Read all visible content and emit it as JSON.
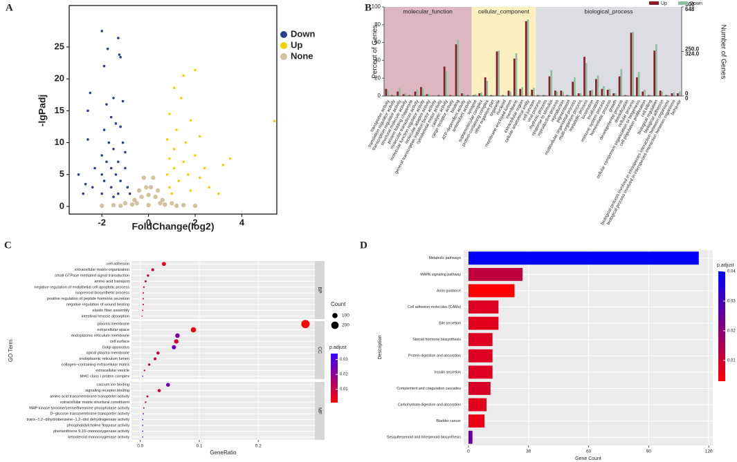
{
  "chart_data": [
    {
      "type": "scatter",
      "panel_label": "A",
      "x_label": "FoldChange(log2)",
      "y_label": "-lgPadj",
      "xlim": [
        -3.4,
        5.5
      ],
      "ylim": [
        -1.2,
        31.5
      ],
      "xticks": [
        -2,
        0,
        2,
        4
      ],
      "yticks": [
        0,
        5,
        10,
        15,
        20,
        25
      ],
      "series": [
        {
          "name": "Down",
          "color": "#2b3f8f",
          "x": [
            -2,
            -1.3,
            -1.75,
            -1.25,
            -1.2,
            -1.9,
            -2.5,
            -1.5,
            -1.8,
            -1.1,
            -2.6,
            -1.6,
            -1.4,
            -1.9,
            -1.2,
            -2.6,
            -1.7,
            -1.1,
            -1.5,
            -2.0,
            -1.0,
            -1.8,
            -1.3,
            -2.3,
            -1.6,
            -1.0,
            -2.0,
            -1.4,
            -3.0,
            -2.7,
            -1.9,
            -1.2,
            -2.4,
            -1.6,
            -0.9,
            -2.0,
            -1.3,
            -0.8,
            -2.8,
            -1.5
          ],
          "y": [
            27.5,
            26.4,
            24.7,
            23.8,
            23.4,
            22,
            17.8,
            17,
            16,
            16.5,
            15,
            14,
            13,
            12,
            12.5,
            10.5,
            10,
            10,
            9,
            8,
            8.5,
            7,
            7,
            6,
            6,
            6,
            5,
            5,
            5,
            3.5,
            4,
            4,
            3,
            3,
            3,
            2,
            2,
            2,
            2,
            1.5
          ]
        },
        {
          "name": "Up",
          "color": "#f5d000",
          "x": [
            2,
            1.5,
            1.1,
            1.4,
            0.9,
            1.8,
            1.2,
            2.2,
            0.8,
            1.6,
            3.5,
            1.1,
            2,
            0.9,
            1.5,
            2.4,
            1.1,
            0.8,
            1.7,
            3.2,
            2.2,
            1.3,
            0.9,
            2.6,
            1.8,
            1.0,
            5.4,
            3.0
          ],
          "y": [
            21.4,
            20.5,
            18.6,
            17,
            14.5,
            13.5,
            12,
            11,
            10.5,
            10,
            7.5,
            9,
            8,
            7.5,
            7,
            6,
            6,
            5,
            5,
            6.5,
            4.5,
            4,
            3,
            3,
            2.5,
            2,
            13.4,
            2
          ]
        },
        {
          "name": "None",
          "color": "#d2c2a0",
          "x": [
            -0.5,
            0.5,
            -0.3,
            0.3,
            -0.1,
            0.1,
            0,
            -0.7,
            0.7,
            -0.2,
            0.2,
            -0.4,
            0.4,
            -1,
            1,
            -1.5,
            1.5,
            -0.6,
            0.6,
            0,
            -2,
            2,
            -1.2,
            1.2
          ],
          "y": [
            0.5,
            0.5,
            1.5,
            1.5,
            3,
            3,
            0.2,
            0.3,
            0.3,
            4.5,
            4.5,
            2.5,
            2.5,
            0.5,
            0.5,
            0.2,
            0.2,
            1,
            1,
            1.8,
            0.1,
            0.1,
            0.1,
            0.1
          ]
        }
      ]
    },
    {
      "type": "grouped_bar",
      "panel_label": "B",
      "y_label": "Percent of Genes",
      "y2_label": "Number of Genes",
      "ylim": [
        0,
        100
      ],
      "yticks": [
        0,
        20,
        40,
        60,
        80,
        100
      ],
      "groups": [
        {
          "name": "molecular_function",
          "color": "#dcb6c0",
          "categories": [
            "transporter activity",
            "translation regulator activity",
            "transcription regulator activity",
            "structural molecule activity",
            "protein folding chaperone",
            "molecular transducer activity",
            "molecular function regulator activity",
            "molecular adaptor activity",
            "general transcription initiation factor activity",
            "cytoskeletal motor activity",
            "catalytic activity",
            "cargo receptor activity",
            "binding",
            "ATP-dependent activity",
            "antioxidant activity"
          ]
        },
        {
          "name": "cellular_component",
          "color": "#fdf0c0",
          "categories": [
            "synapse",
            "supramolecular complex",
            "protein-containing complex",
            "other organism part",
            "organelle",
            "nucleoid",
            "membrane-enclosed lumen",
            "membrane",
            "extracellular region",
            "cellular anatomical entity",
            "cell junction"
          ]
        },
        {
          "name": "biological_process",
          "color": "#dcdce3",
          "categories": [
            "viral process",
            "rhythmic process",
            "response to stimulus",
            "reproductive process",
            "reproduction",
            "pigmentation",
            "multicellular organismal process",
            "multi-organism process",
            "metabolic process",
            "locomotion",
            "localization",
            "immune system process",
            "homeostatic process",
            "growth",
            "developmental process",
            "detoxification",
            "cellular process",
            "cellular component organization or biogenesis",
            "cell population proliferation",
            "cell killing",
            "biological regulation",
            "biological adhesion",
            "biological process involved in intraspecies interaction between organisms",
            "biological process involved in interspecies interaction between organisms",
            "behavior"
          ]
        }
      ],
      "series": [
        {
          "name": "Up",
          "color": "#8b1a2b",
          "values": [
            8,
            1,
            5,
            2,
            1,
            5,
            10,
            2,
            0.5,
            1,
            33,
            1,
            58,
            3,
            1,
            1,
            3,
            21,
            1,
            50,
            1,
            6,
            42,
            8,
            84,
            7,
            1,
            1,
            22,
            6,
            6,
            1,
            16,
            3,
            44,
            6,
            19,
            8,
            7,
            3,
            22,
            1,
            71,
            21,
            5,
            1,
            51,
            6,
            1,
            3,
            3
          ],
          "y2lim": [
            0,
            500
          ],
          "y2ticks": [
            0,
            {
              "value": 250,
              "label": "250.0"
            },
            500
          ]
        },
        {
          "name": "Down",
          "color": "#8fbf9f",
          "values": [
            6,
            1,
            9,
            3,
            1,
            7,
            9,
            2,
            1,
            1,
            28,
            1,
            63,
            3,
            1,
            2,
            4,
            17,
            1,
            51,
            0.5,
            5,
            48,
            10,
            86,
            9,
            1,
            1,
            29,
            5,
            5,
            1,
            21,
            3,
            37,
            7,
            23,
            11,
            8,
            3,
            30,
            1,
            72,
            27,
            7,
            1,
            58,
            5,
            1,
            4,
            5
          ],
          "y2lim": [
            0,
            648
          ],
          "y2ticks": [
            0,
            {
              "value": 324,
              "label": "324.0"
            },
            648
          ]
        }
      ]
    },
    {
      "type": "dot",
      "panel_label": "C",
      "x_label": "GeneRatio",
      "y_label": "GO Term",
      "xlim": [
        -0.015,
        0.296
      ],
      "xticks": [
        {
          "value": 0,
          "label": "0.0"
        },
        {
          "value": 0.1,
          "label": "0.1"
        },
        {
          "value": 0.2,
          "label": "0.2"
        }
      ],
      "size_title": "Count",
      "size_ticks": [
        100,
        200
      ],
      "color_title": "p.adjust",
      "clim": [
        0.001,
        0.034
      ],
      "color_ticks": [
        0.01,
        0.02,
        0.03
      ],
      "color_low": "#ff0000",
      "color_high": "#3a00ff",
      "facets": [
        {
          "name": "BP",
          "terms": [
            "cell adhesion",
            "extracellular matrix organization",
            "small GTPase mediated signal transduction",
            "amino acid transport",
            "negative regulation of endothelial cell apoptotic process",
            "isoprenoid biosynthetic process",
            "positive regulation of peptide hormone secretion",
            "negative regulation of wound healing",
            "elastic fiber assembly",
            "intestinal hexose absorption"
          ],
          "x": [
            0.04,
            0.021,
            0.013,
            0.009,
            0.006,
            0.005,
            0.005,
            0.005,
            0.004,
            0.003
          ],
          "count": [
            60,
            30,
            20,
            15,
            10,
            8,
            8,
            8,
            6,
            5
          ],
          "p_adjust": [
            0.005,
            0.01,
            0.012,
            0.01,
            0.01,
            0.01,
            0.01,
            0.01,
            0.01,
            0.01
          ]
        },
        {
          "name": "CC",
          "terms": [
            "plasma membrane",
            "extracellular space",
            "endoplasmic reticulum membrane",
            "cell surface",
            "Golgi apparatus",
            "apical plasma membrane",
            "endoplasmic reticulum lumen",
            "collagen−containing extracellular matrix",
            "extracellular vesicle",
            "MHC class I protein complex"
          ],
          "x": [
            0.28,
            0.09,
            0.063,
            0.061,
            0.057,
            0.03,
            0.025,
            0.015,
            0.007,
            0.004
          ],
          "count": [
            250,
            100,
            75,
            70,
            65,
            35,
            30,
            20,
            10,
            5
          ],
          "p_adjust": [
            0.001,
            0.003,
            0.022,
            0.008,
            0.026,
            0.01,
            0.01,
            0.012,
            0.015,
            0.025
          ]
        },
        {
          "name": "MF",
          "terms": [
            "calcium ion binding",
            "signaling receptor binding",
            "amino acid transmembrane transporter activity",
            "extracellular matrix structural constituent",
            "MAP kinase tyrosine/serine/threonine phosphatase activity",
            "D−glucose transmembrane transporter activity",
            "trans−1,2−dihydrobenzene−1,2−diol dehydrogenase activity",
            "phosphatidylcholine floppase activity",
            "phenanthrene 9,10−monooxygenase activity",
            "ketosteroid monooxygenase activity"
          ],
          "x": [
            0.047,
            0.032,
            0.012,
            0.009,
            0.006,
            0.005,
            0.004,
            0.004,
            0.004,
            0.004
          ],
          "count": [
            55,
            38,
            15,
            10,
            8,
            6,
            5,
            5,
            5,
            5
          ],
          "p_adjust": [
            0.025,
            0.008,
            0.012,
            0.015,
            0.02,
            0.025,
            0.025,
            0.027,
            0.025,
            0.025
          ]
        }
      ]
    },
    {
      "type": "hbar",
      "panel_label": "D",
      "x_label": "Gene Count",
      "y_label": "Description",
      "xlim": [
        -2.4,
        122
      ],
      "xticks": [
        0,
        30,
        60,
        90,
        120
      ],
      "color_title": "p.adjust",
      "clim": [
        0.003,
        0.04
      ],
      "color_ticks": [
        0.01,
        0.02,
        0.03,
        0.04
      ],
      "color_low": "#ff0000",
      "color_high": "#0000ff",
      "categories": [
        "Metabolic pathways",
        "MAPK signaling pathway",
        "Axon guidance",
        "Cell adhesion molecules (CAMs)",
        "Bile secretion",
        "Steroid hormone biosynthesis",
        "Protein digestion and absorption",
        "Insulin secretion",
        "Complement and coagulation cascades",
        "Carbohydrate digestion and absorption",
        "Bladder cancer",
        "Sesquiterpenoid and triterpenoid biosynthesis"
      ],
      "values": [
        115,
        27,
        23,
        15,
        15,
        12,
        12,
        12,
        11,
        9,
        8,
        2
      ],
      "p_adjust": [
        0.04,
        0.012,
        0.003,
        0.008,
        0.007,
        0.008,
        0.008,
        0.008,
        0.009,
        0.007,
        0.006,
        0.025
      ]
    }
  ]
}
